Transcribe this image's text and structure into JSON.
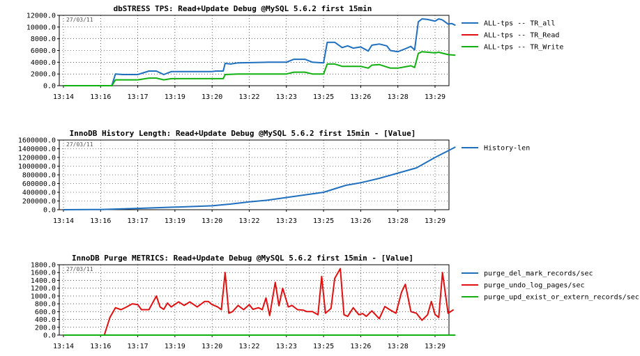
{
  "chart_data": [
    {
      "type": "line",
      "title": "dbSTRESS TPS: Read+Update Debug @MySQL 5.6.2 first 15min",
      "date_stamp": "27/03/11",
      "ylim": [
        0,
        12000
      ],
      "y_ticks": [
        "12000.0",
        "10000.0",
        "8000.0",
        "6000.0",
        "4000.0",
        "2000.0",
        "0.0"
      ],
      "x_ticks": [
        "13:14",
        "13:16",
        "13:17",
        "13:19",
        "13:20",
        "13:22",
        "13:23",
        "13:25",
        "13:26",
        "13:28",
        "13:29"
      ],
      "grid": true,
      "legend_position": "right",
      "series": [
        {
          "name": "ALL-tps -- TR_all",
          "color": "#1f6fbf",
          "points": [
            [
              0,
              0
            ],
            [
              1.3,
              0
            ],
            [
              1.4,
              2000
            ],
            [
              1.6,
              1900
            ],
            [
              2,
              1900
            ],
            [
              2.3,
              2500
            ],
            [
              2.5,
              2500
            ],
            [
              2.7,
              1900
            ],
            [
              2.9,
              2400
            ],
            [
              3.5,
              2400
            ],
            [
              4,
              2400
            ],
            [
              4.1,
              2500
            ],
            [
              4.3,
              2500
            ],
            [
              4.35,
              3800
            ],
            [
              4.5,
              3700
            ],
            [
              4.7,
              3900
            ],
            [
              5.5,
              4000
            ],
            [
              6,
              4000
            ],
            [
              6.2,
              4500
            ],
            [
              6.5,
              4500
            ],
            [
              6.7,
              4000
            ],
            [
              7,
              3900
            ],
            [
              7.1,
              7400
            ],
            [
              7.3,
              7400
            ],
            [
              7.5,
              6500
            ],
            [
              7.65,
              6800
            ],
            [
              7.8,
              6400
            ],
            [
              8,
              6600
            ],
            [
              8.2,
              5900
            ],
            [
              8.3,
              6900
            ],
            [
              8.5,
              7100
            ],
            [
              8.7,
              6800
            ],
            [
              8.8,
              6000
            ],
            [
              9,
              5800
            ],
            [
              9.2,
              6300
            ],
            [
              9.35,
              6700
            ],
            [
              9.45,
              6100
            ],
            [
              9.55,
              10900
            ],
            [
              9.65,
              11400
            ],
            [
              9.8,
              11300
            ],
            [
              10,
              11000
            ],
            [
              10.1,
              11400
            ],
            [
              10.2,
              11200
            ],
            [
              10.35,
              10500
            ],
            [
              10.45,
              10600
            ],
            [
              10.55,
              10300
            ]
          ]
        },
        {
          "name": "ALL-tps -- TR_Read",
          "color": "#e01010",
          "points": []
        },
        {
          "name": "ALL-tps -- TR_Write",
          "color": "#10b010",
          "points": [
            [
              0,
              0
            ],
            [
              1.3,
              0
            ],
            [
              1.4,
              1000
            ],
            [
              2,
              1000
            ],
            [
              2.3,
              1300
            ],
            [
              2.5,
              1300
            ],
            [
              2.7,
              1000
            ],
            [
              2.9,
              1200
            ],
            [
              4.3,
              1200
            ],
            [
              4.35,
              1900
            ],
            [
              4.7,
              2000
            ],
            [
              6,
              2000
            ],
            [
              6.2,
              2300
            ],
            [
              6.5,
              2300
            ],
            [
              6.7,
              2000
            ],
            [
              7,
              2000
            ],
            [
              7.1,
              3700
            ],
            [
              7.3,
              3700
            ],
            [
              7.5,
              3300
            ],
            [
              8,
              3300
            ],
            [
              8.2,
              3000
            ],
            [
              8.3,
              3500
            ],
            [
              8.5,
              3600
            ],
            [
              8.8,
              3000
            ],
            [
              9,
              3000
            ],
            [
              9.35,
              3400
            ],
            [
              9.45,
              3100
            ],
            [
              9.55,
              5500
            ],
            [
              9.65,
              5800
            ],
            [
              10,
              5600
            ],
            [
              10.1,
              5700
            ],
            [
              10.35,
              5300
            ],
            [
              10.55,
              5200
            ]
          ]
        }
      ]
    },
    {
      "type": "line",
      "title": "InnoDB History Length: Read+Update Debug @MySQL 5.6.2 first 15min - [Value]",
      "date_stamp": "27/03/11",
      "ylim": [
        0,
        1600000
      ],
      "y_ticks": [
        "1600000.0",
        "1400000.0",
        "1200000.0",
        "1000000.0",
        "800000.0",
        "600000.0",
        "400000.0",
        "200000.0",
        "0.0"
      ],
      "x_ticks": [
        "13:14",
        "13:16",
        "13:17",
        "13:19",
        "13:20",
        "13:22",
        "13:23",
        "13:25",
        "13:26",
        "13:28",
        "13:29"
      ],
      "grid": true,
      "legend_position": "right",
      "series": [
        {
          "name": "History-len",
          "color": "#1f6fbf",
          "points": [
            [
              0,
              0
            ],
            [
              1,
              5000
            ],
            [
              2,
              30000
            ],
            [
              3,
              60000
            ],
            [
              4,
              90000
            ],
            [
              4.5,
              130000
            ],
            [
              5,
              180000
            ],
            [
              5.5,
              220000
            ],
            [
              6,
              280000
            ],
            [
              6.5,
              340000
            ],
            [
              7,
              400000
            ],
            [
              7.3,
              480000
            ],
            [
              7.6,
              560000
            ],
            [
              8,
              620000
            ],
            [
              8.5,
              720000
            ],
            [
              9,
              840000
            ],
            [
              9.5,
              960000
            ],
            [
              10,
              1200000
            ],
            [
              10.3,
              1330000
            ],
            [
              10.55,
              1440000
            ]
          ]
        }
      ]
    },
    {
      "type": "line",
      "title": "InnoDB Purge METRICS: Read+Update Debug @MySQL 5.6.2 first 15min - [Value]",
      "date_stamp": "27/03/11",
      "ylim": [
        0,
        1800
      ],
      "y_ticks": [
        "1800.0",
        "1600.0",
        "1400.0",
        "1200.0",
        "1000.0",
        "800.0",
        "600.0",
        "400.0",
        "200.0",
        "0.0"
      ],
      "x_ticks": [
        "13:14",
        "13:16",
        "13:17",
        "13:19",
        "13:20",
        "13:22",
        "13:23",
        "13:25",
        "13:26",
        "13:28",
        "13:29"
      ],
      "grid": true,
      "legend_position": "right",
      "series": [
        {
          "name": "purge_del_mark_records/sec",
          "color": "#1f6fbf",
          "points": []
        },
        {
          "name": "purge_undo_log_pages/sec",
          "color": "#e01010",
          "points": [
            [
              0,
              0
            ],
            [
              1.1,
              0
            ],
            [
              1.25,
              450
            ],
            [
              1.4,
              700
            ],
            [
              1.55,
              650
            ],
            [
              1.7,
              720
            ],
            [
              1.85,
              800
            ],
            [
              2,
              780
            ],
            [
              2.1,
              650
            ],
            [
              2.3,
              650
            ],
            [
              2.5,
              1000
            ],
            [
              2.6,
              720
            ],
            [
              2.7,
              660
            ],
            [
              2.8,
              820
            ],
            [
              2.9,
              720
            ],
            [
              3.1,
              850
            ],
            [
              3.25,
              760
            ],
            [
              3.4,
              850
            ],
            [
              3.6,
              720
            ],
            [
              3.8,
              860
            ],
            [
              3.9,
              860
            ],
            [
              4,
              780
            ],
            [
              4.15,
              720
            ],
            [
              4.25,
              650
            ],
            [
              4.35,
              1600
            ],
            [
              4.45,
              560
            ],
            [
              4.55,
              600
            ],
            [
              4.7,
              760
            ],
            [
              4.85,
              650
            ],
            [
              5,
              780
            ],
            [
              5.1,
              660
            ],
            [
              5.25,
              700
            ],
            [
              5.35,
              650
            ],
            [
              5.45,
              950
            ],
            [
              5.55,
              500
            ],
            [
              5.7,
              1350
            ],
            [
              5.8,
              750
            ],
            [
              5.9,
              1200
            ],
            [
              6.05,
              720
            ],
            [
              6.15,
              760
            ],
            [
              6.3,
              650
            ],
            [
              6.45,
              640
            ],
            [
              6.55,
              600
            ],
            [
              6.7,
              600
            ],
            [
              6.85,
              520
            ],
            [
              6.95,
              1500
            ],
            [
              7.05,
              560
            ],
            [
              7.2,
              680
            ],
            [
              7.3,
              1450
            ],
            [
              7.45,
              1700
            ],
            [
              7.55,
              520
            ],
            [
              7.65,
              480
            ],
            [
              7.8,
              700
            ],
            [
              7.95,
              520
            ],
            [
              8.05,
              550
            ],
            [
              8.15,
              480
            ],
            [
              8.3,
              620
            ],
            [
              8.5,
              420
            ],
            [
              8.65,
              730
            ],
            [
              8.8,
              640
            ],
            [
              8.95,
              560
            ],
            [
              9.1,
              1100
            ],
            [
              9.2,
              1300
            ],
            [
              9.35,
              600
            ],
            [
              9.5,
              560
            ],
            [
              9.65,
              380
            ],
            [
              9.8,
              520
            ],
            [
              9.9,
              860
            ],
            [
              10,
              530
            ],
            [
              10.1,
              450
            ],
            [
              10.2,
              1600
            ],
            [
              10.35,
              560
            ],
            [
              10.5,
              650
            ]
          ]
        },
        {
          "name": "purge_upd_exist_or_extern_records/sec",
          "color": "#10b010",
          "points": [
            [
              0,
              0
            ],
            [
              10.55,
              0
            ]
          ]
        }
      ]
    }
  ]
}
